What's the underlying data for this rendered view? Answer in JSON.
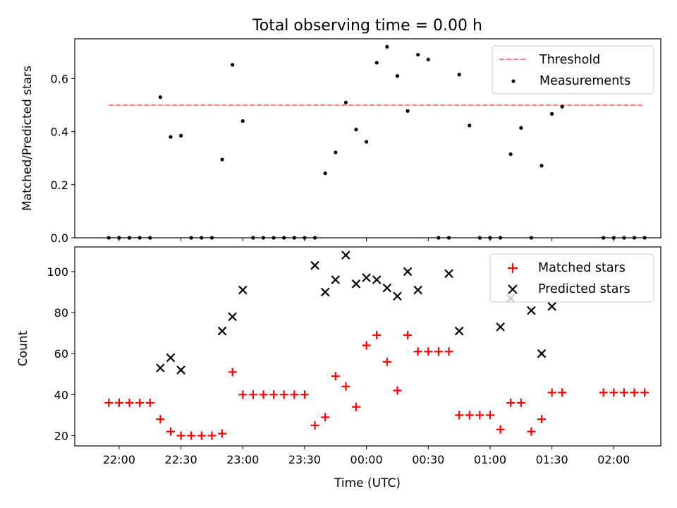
{
  "title": "Total observing time = 0.00 h",
  "xlabel": "Time (UTC)",
  "colors": {
    "threshold": "#ff8080",
    "matched": "#ff0000",
    "predicted": "#000000",
    "measurement": "#000000"
  },
  "chart_data": [
    {
      "type": "scatter",
      "ylabel": "Matched/Predicted stars",
      "ylim": [
        0,
        0.75
      ],
      "yticks": [
        0.0,
        0.2,
        0.4,
        0.6
      ],
      "ytick_labels": [
        "0.0",
        "0.2",
        "0.4",
        "0.6"
      ],
      "legend_position": "top-right",
      "threshold": {
        "name": "Threshold",
        "value": 0.5,
        "x_range": [
          "21:55",
          "02:15"
        ]
      },
      "series": [
        {
          "name": "Measurements",
          "x": [
            "21:55",
            "22:00",
            "22:05",
            "22:10",
            "22:15",
            "22:20",
            "22:25",
            "22:30",
            "22:35",
            "22:40",
            "22:45",
            "22:50",
            "22:55",
            "23:00",
            "23:05",
            "23:10",
            "23:15",
            "23:20",
            "23:25",
            "23:30",
            "23:35",
            "23:40",
            "23:45",
            "23:50",
            "23:55",
            "00:00",
            "00:05",
            "00:10",
            "00:15",
            "00:20",
            "00:25",
            "00:30",
            "00:35",
            "00:40",
            "00:45",
            "00:50",
            "00:55",
            "01:00",
            "01:05",
            "01:10",
            "01:15",
            "01:20",
            "01:25",
            "01:30",
            "01:35",
            "01:55",
            "02:00",
            "02:05",
            "02:10",
            "02:15"
          ],
          "y": [
            0,
            0,
            0,
            0,
            0,
            0.53,
            0.38,
            0.385,
            0,
            0,
            0,
            0.295,
            0.652,
            0.44,
            0,
            0,
            0,
            0,
            0,
            0,
            0,
            0.243,
            0.322,
            0.51,
            0.408,
            0.362,
            0.66,
            0.72,
            0.61,
            0.478,
            0.69,
            0.672,
            0,
            0,
            0.615,
            0.423,
            0,
            0,
            0,
            0.315,
            0.414,
            0,
            0.272,
            0.467,
            0.494,
            0,
            0,
            0,
            0,
            0
          ]
        }
      ]
    },
    {
      "type": "scatter",
      "ylabel": "Count",
      "ylim": [
        15,
        112
      ],
      "yticks": [
        20,
        40,
        60,
        80,
        100
      ],
      "ytick_labels": [
        "20",
        "40",
        "60",
        "80",
        "100"
      ],
      "legend_position": "top-right",
      "x_ticks": [
        "22:00",
        "22:30",
        "23:00",
        "23:30",
        "00:00",
        "00:30",
        "01:00",
        "01:30",
        "02:00"
      ],
      "series": [
        {
          "name": "Matched stars",
          "x": [
            "21:55",
            "22:00",
            "22:05",
            "22:10",
            "22:15",
            "22:20",
            "22:25",
            "22:30",
            "22:35",
            "22:40",
            "22:45",
            "22:50",
            "22:55",
            "23:00",
            "23:05",
            "23:10",
            "23:15",
            "23:20",
            "23:25",
            "23:30",
            "23:35",
            "23:40",
            "23:45",
            "23:50",
            "23:55",
            "00:00",
            "00:05",
            "00:10",
            "00:15",
            "00:20",
            "00:25",
            "00:30",
            "00:35",
            "00:40",
            "00:45",
            "00:50",
            "00:55",
            "01:00",
            "01:05",
            "01:10",
            "01:15",
            "01:20",
            "01:25",
            "01:30",
            "01:35",
            "01:55",
            "02:00",
            "02:05",
            "02:10",
            "02:15"
          ],
          "y": [
            36,
            36,
            36,
            36,
            36,
            28,
            22,
            20,
            20,
            20,
            20,
            21,
            51,
            40,
            40,
            40,
            40,
            40,
            40,
            40,
            25,
            29,
            49,
            44,
            34,
            64,
            69,
            56,
            42,
            69,
            61,
            61,
            61,
            61,
            30,
            30,
            30,
            30,
            23,
            36,
            36,
            22,
            28,
            41,
            41,
            41,
            41,
            41,
            41,
            41
          ]
        },
        {
          "name": "Predicted stars",
          "x": [
            "22:20",
            "22:25",
            "22:30",
            "22:50",
            "22:55",
            "23:00",
            "23:35",
            "23:40",
            "23:45",
            "23:50",
            "23:55",
            "00:00",
            "00:05",
            "00:10",
            "00:15",
            "00:20",
            "00:25",
            "00:40",
            "00:45",
            "01:05",
            "01:10",
            "01:20",
            "01:25",
            "01:30"
          ],
          "y": [
            53,
            58,
            52,
            71,
            78,
            91,
            103,
            90,
            96,
            108,
            94,
            97,
            96,
            92,
            88,
            100,
            91,
            99,
            71,
            73,
            87,
            81,
            60,
            83
          ]
        }
      ]
    }
  ]
}
